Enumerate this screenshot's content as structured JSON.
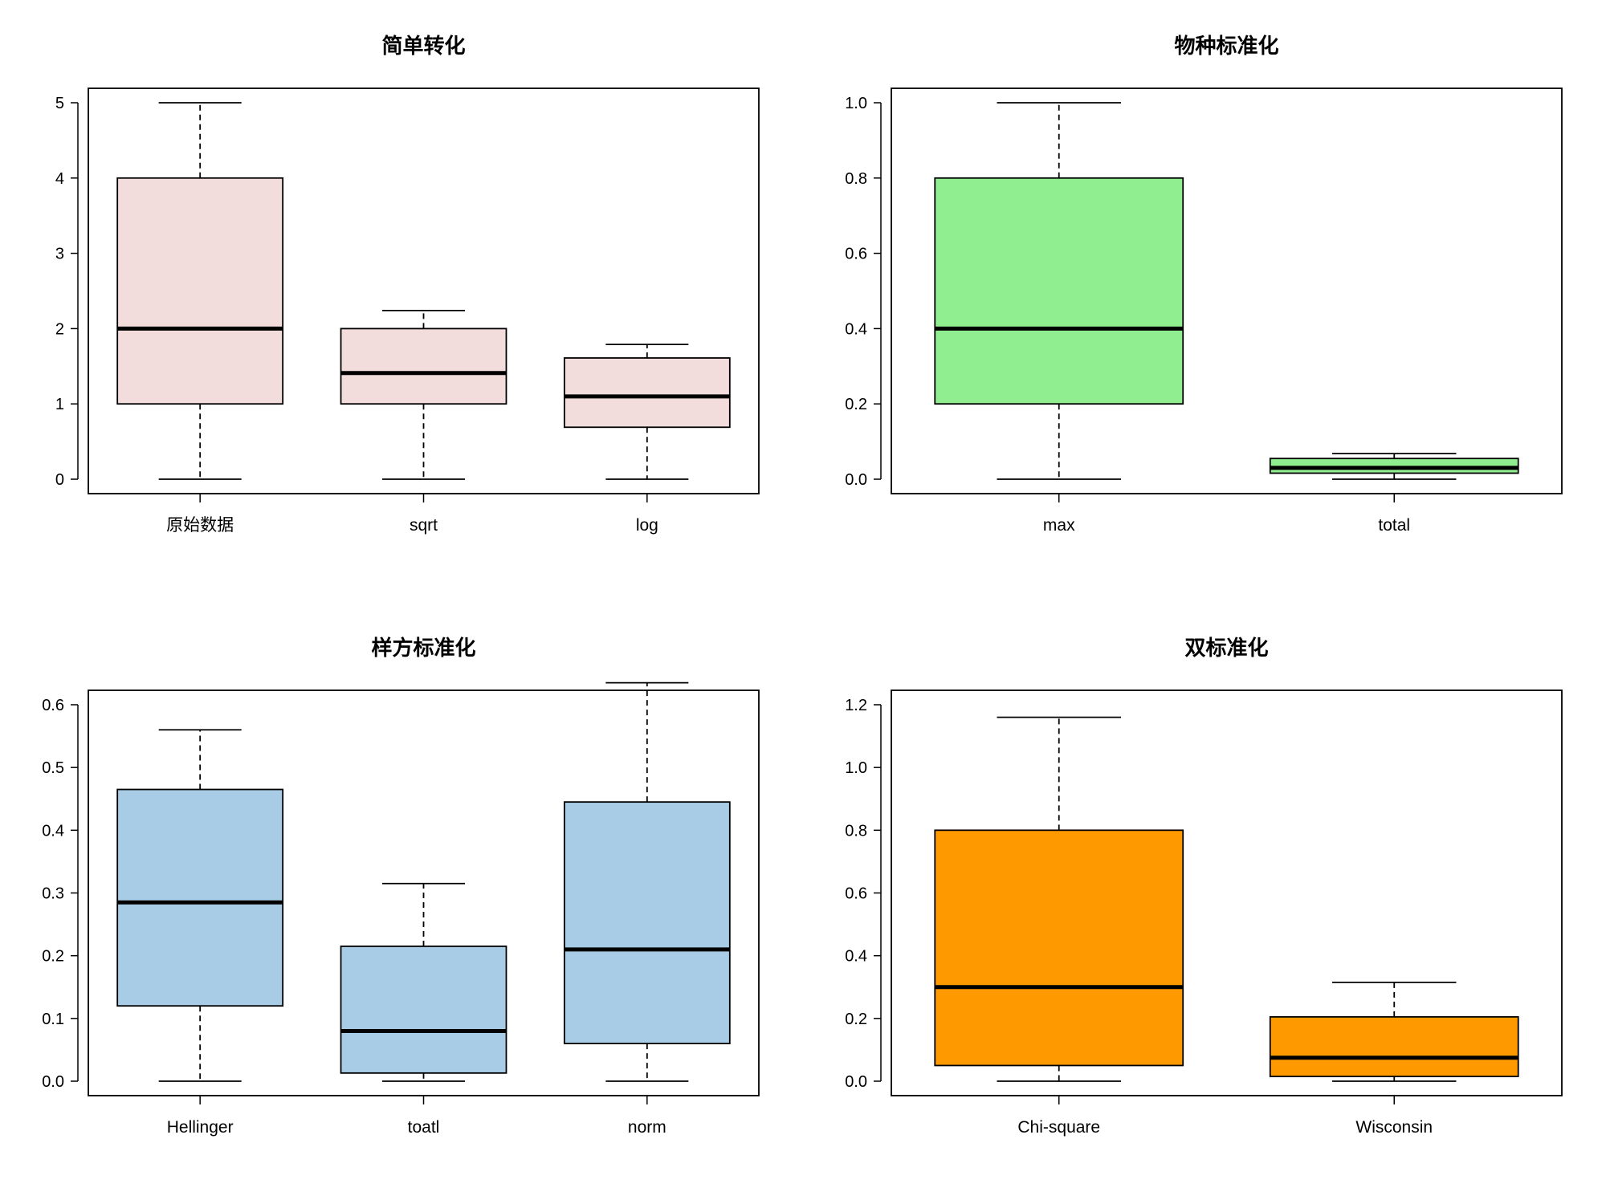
{
  "chart_data": [
    {
      "type": "boxplot",
      "title": "简单转化",
      "fill": "#f2dcdc",
      "categories": [
        "原始数据",
        "sqrt",
        "log"
      ],
      "series": [
        {
          "name": "原始数据",
          "min": 0,
          "q1": 1,
          "median": 2,
          "q3": 4,
          "max": 5
        },
        {
          "name": "sqrt",
          "min": 0,
          "q1": 1,
          "median": 1.41,
          "q3": 2,
          "max": 2.24
        },
        {
          "name": "log",
          "min": 0,
          "q1": 0.69,
          "median": 1.1,
          "q3": 1.61,
          "max": 1.79
        }
      ],
      "ylim": [
        0,
        5
      ],
      "yticks": [
        "0",
        "1",
        "2",
        "3",
        "4",
        "5"
      ],
      "ytick_values": [
        0,
        1,
        2,
        3,
        4,
        5
      ]
    },
    {
      "type": "boxplot",
      "title": "物种标准化",
      "fill": "#90ee90",
      "categories": [
        "max",
        "total"
      ],
      "series": [
        {
          "name": "max",
          "min": 0,
          "q1": 0.2,
          "median": 0.4,
          "q3": 0.8,
          "max": 1.0
        },
        {
          "name": "total",
          "min": 0,
          "q1": 0.016,
          "median": 0.03,
          "q3": 0.055,
          "max": 0.068
        }
      ],
      "ylim": [
        0,
        1.0
      ],
      "yticks": [
        "0.0",
        "0.2",
        "0.4",
        "0.6",
        "0.8",
        "1.0"
      ],
      "ytick_values": [
        0,
        0.2,
        0.4,
        0.6,
        0.8,
        1.0
      ]
    },
    {
      "type": "boxplot",
      "title": "样方标准化",
      "fill": "#a8cce6",
      "categories": [
        "Hellinger",
        "toatl",
        "norm"
      ],
      "series": [
        {
          "name": "Hellinger",
          "min": 0,
          "q1": 0.12,
          "median": 0.285,
          "q3": 0.465,
          "max": 0.56
        },
        {
          "name": "toatl",
          "min": 0,
          "q1": 0.013,
          "median": 0.08,
          "q3": 0.215,
          "max": 0.315
        },
        {
          "name": "norm",
          "min": 0,
          "q1": 0.06,
          "median": 0.21,
          "q3": 0.445,
          "max": 0.635
        }
      ],
      "ylim": [
        0,
        0.6
      ],
      "yticks": [
        "0.0",
        "0.1",
        "0.2",
        "0.3",
        "0.4",
        "0.5",
        "0.6"
      ],
      "ytick_values": [
        0,
        0.1,
        0.2,
        0.3,
        0.4,
        0.5,
        0.6
      ]
    },
    {
      "type": "boxplot",
      "title": "双标准化",
      "fill": "#ff9900",
      "categories": [
        "Chi-square",
        "Wisconsin"
      ],
      "series": [
        {
          "name": "Chi-square",
          "min": 0,
          "q1": 0.05,
          "median": 0.3,
          "q3": 0.8,
          "max": 1.16
        },
        {
          "name": "Wisconsin",
          "min": 0,
          "q1": 0.015,
          "median": 0.075,
          "q3": 0.205,
          "max": 0.315
        }
      ],
      "ylim": [
        0,
        1.2
      ],
      "yticks": [
        "0.0",
        "0.2",
        "0.4",
        "0.6",
        "0.8",
        "1.0",
        "1.2"
      ],
      "ytick_values": [
        0,
        0.2,
        0.4,
        0.6,
        0.8,
        1.0,
        1.2
      ]
    }
  ]
}
